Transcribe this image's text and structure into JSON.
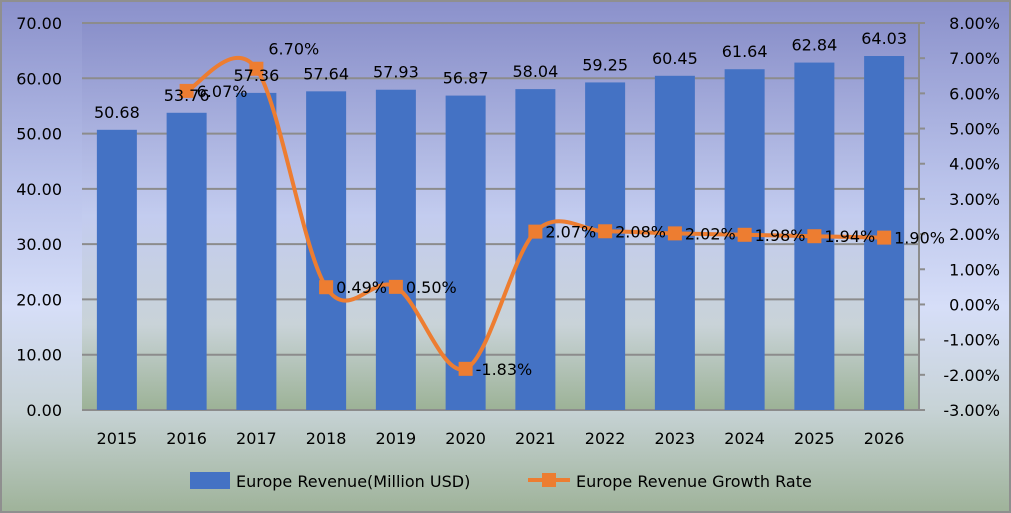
{
  "chart_data": {
    "type": "bar+line",
    "categories": [
      "2015",
      "2016",
      "2017",
      "2018",
      "2019",
      "2020",
      "2021",
      "2022",
      "2023",
      "2024",
      "2025",
      "2026"
    ],
    "series": [
      {
        "name": "Europe Revenue(Million USD)",
        "type": "bar",
        "axis": "left",
        "color": "#4472c4",
        "values": [
          50.68,
          53.76,
          57.36,
          57.64,
          57.93,
          56.87,
          58.04,
          59.25,
          60.45,
          61.64,
          62.84,
          64.03
        ],
        "labels": [
          "50.68",
          "53.76",
          "57.36",
          "57.64",
          "57.93",
          "56.87",
          "58.04",
          "59.25",
          "60.45",
          "61.64",
          "62.84",
          "64.03"
        ]
      },
      {
        "name": "Europe Revenue Growth Rate",
        "type": "line",
        "axis": "right",
        "color": "#ed7d31",
        "values": [
          null,
          6.07,
          6.7,
          0.49,
          0.5,
          -1.83,
          2.07,
          2.08,
          2.02,
          1.98,
          1.94,
          1.9
        ],
        "labels": [
          "",
          "6.07%",
          "6.70%",
          "0.49%",
          "0.50%",
          "-1.83%",
          "2.07%",
          "2.08%",
          "2.02%",
          "1.98%",
          "1.94%",
          "1.90%"
        ]
      }
    ],
    "y_left": {
      "range": [
        0,
        70
      ],
      "ticks": [
        "0.00",
        "10.00",
        "20.00",
        "30.00",
        "40.00",
        "50.00",
        "60.00",
        "70.00"
      ]
    },
    "y_right": {
      "range": [
        -3,
        8
      ],
      "ticks": [
        "-3.00%",
        "-2.00%",
        "-1.00%",
        "0.00%",
        "1.00%",
        "2.00%",
        "3.00%",
        "4.00%",
        "5.00%",
        "6.00%",
        "7.00%",
        "8.00%"
      ]
    },
    "grid": true,
    "legend": "bottom",
    "legend_entries": [
      "Europe Revenue(Million USD)",
      "Europe Revenue Growth Rate"
    ]
  }
}
